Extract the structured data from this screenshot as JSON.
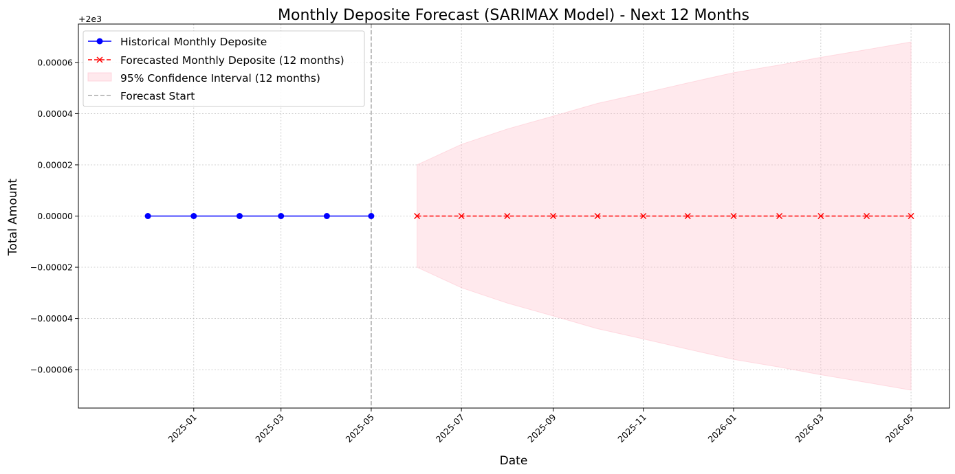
{
  "chart_data": {
    "type": "line",
    "title": "Monthly Deposite Forecast (SARIMAX Model) - Next 12 Months",
    "xlabel": "Date",
    "ylabel": "Total Amount",
    "y_offset_label": "+2e3",
    "y_offset": 2000,
    "ylim": [
      -7.5e-05,
      7.5e-05
    ],
    "xlim": [
      "2024-10-15",
      "2026-05-27"
    ],
    "grid": true,
    "legend_placement": "top-left",
    "x_ticks": [
      "2025-01",
      "2025-03",
      "2025-05",
      "2025-07",
      "2025-09",
      "2025-11",
      "2026-01",
      "2026-03",
      "2026-05"
    ],
    "x_tick_dates": [
      "2025-01-01",
      "2025-03-01",
      "2025-05-01",
      "2025-07-01",
      "2025-09-01",
      "2025-11-01",
      "2026-01-01",
      "2026-03-01",
      "2026-05-01"
    ],
    "y_ticks": [
      -6e-05,
      -4e-05,
      -2e-05,
      0.0,
      2e-05,
      4e-05,
      6e-05
    ],
    "y_tick_labels": [
      "−0.00006",
      "−0.00004",
      "−0.00002",
      "0.00000",
      "0.00002",
      "0.00004",
      "0.00006"
    ],
    "series": [
      {
        "name": "Historical Monthly Deposite",
        "color": "#0000ff",
        "style": "solid",
        "marker": "circle",
        "x": [
          "2024-12-01",
          "2025-01-01",
          "2025-02-01",
          "2025-03-01",
          "2025-04-01",
          "2025-05-01"
        ],
        "y": [
          0,
          0,
          0,
          0,
          0,
          0
        ]
      },
      {
        "name": "Forecasted Monthly Deposite (12 months)",
        "color": "#ff0000",
        "style": "dashed",
        "marker": "x",
        "x": [
          "2025-06-01",
          "2025-07-01",
          "2025-08-01",
          "2025-09-01",
          "2025-10-01",
          "2025-11-01",
          "2025-12-01",
          "2026-01-01",
          "2026-02-01",
          "2026-03-01",
          "2026-04-01",
          "2026-05-01"
        ],
        "y": [
          0,
          0,
          0,
          0,
          0,
          0,
          0,
          0,
          0,
          0,
          0,
          0
        ]
      }
    ],
    "confidence_interval": {
      "name": "95% Confidence Interval (12 months)",
      "color": "#ffc0cb",
      "x": [
        "2025-06-01",
        "2025-07-01",
        "2025-08-01",
        "2025-09-01",
        "2025-10-01",
        "2025-11-01",
        "2025-12-01",
        "2026-01-01",
        "2026-02-01",
        "2026-03-01",
        "2026-04-01",
        "2026-05-01"
      ],
      "lower": [
        -2e-05,
        -2.8e-05,
        -3.4e-05,
        -3.9e-05,
        -4.4e-05,
        -4.8e-05,
        -5.2e-05,
        -5.6e-05,
        -5.9e-05,
        -6.2e-05,
        -6.5e-05,
        -6.8e-05
      ],
      "upper": [
        2e-05,
        2.8e-05,
        3.4e-05,
        3.9e-05,
        4.4e-05,
        4.8e-05,
        5.2e-05,
        5.6e-05,
        5.9e-05,
        6.2e-05,
        6.5e-05,
        6.8e-05
      ]
    },
    "forecast_start": {
      "name": "Forecast Start",
      "x": "2025-05-01",
      "color": "#aaaaaa"
    }
  }
}
